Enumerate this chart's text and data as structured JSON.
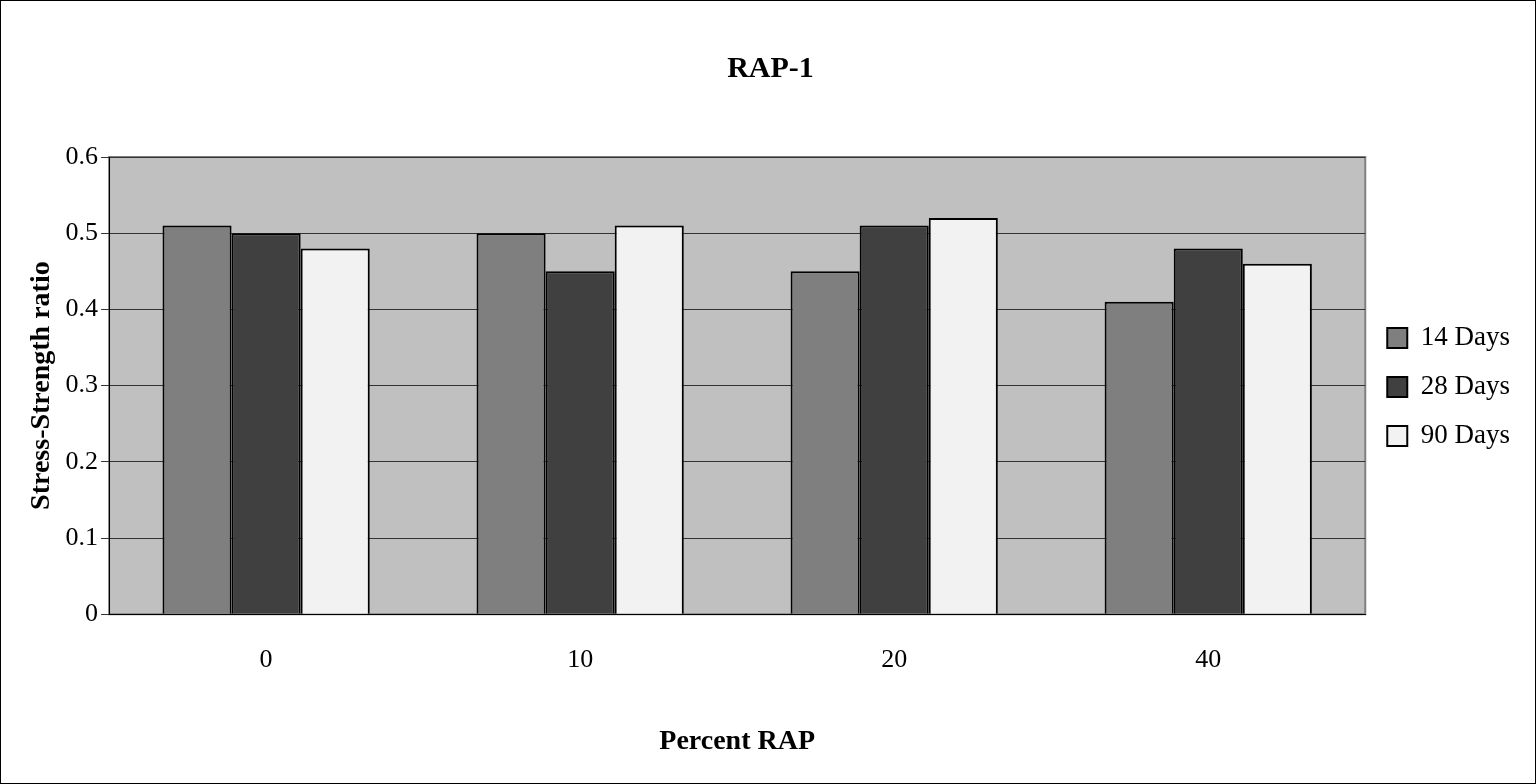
{
  "chart_data": {
    "type": "bar",
    "title": "RAP-1",
    "xlabel": "Percent RAP",
    "ylabel": "Stress-Strength ratio",
    "categories": [
      "0",
      "10",
      "20",
      "40"
    ],
    "series": [
      {
        "name": "14 Days",
        "color": "#7f7f7f",
        "values": [
          0.51,
          0.5,
          0.45,
          0.41
        ]
      },
      {
        "name": "28 Days",
        "color": "#404040",
        "values": [
          0.5,
          0.45,
          0.51,
          0.48
        ]
      },
      {
        "name": "90 Days",
        "color": "#f2f2f2",
        "values": [
          0.48,
          0.51,
          0.52,
          0.46
        ]
      }
    ],
    "ylim": [
      0,
      0.6
    ],
    "yticks": [
      0,
      0.1,
      0.2,
      0.3,
      0.4,
      0.5,
      0.6
    ],
    "grid": "y",
    "legend": "right"
  }
}
